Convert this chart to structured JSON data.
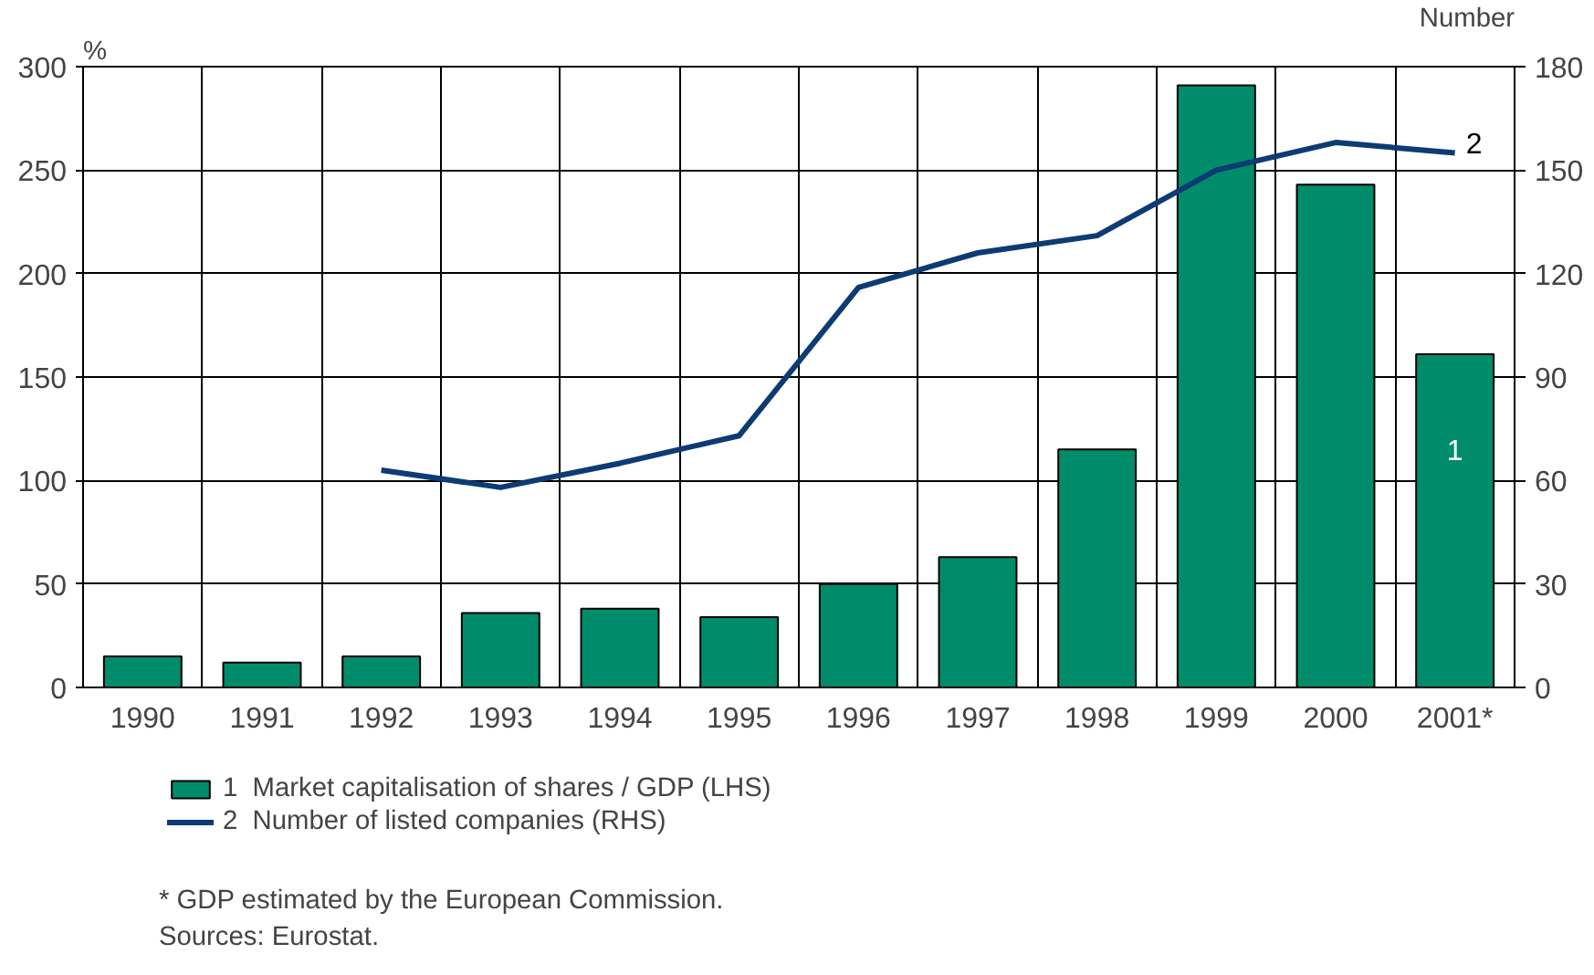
{
  "chart_data": {
    "type": "bar",
    "ylabel": "%",
    "y2label": "Number",
    "categories": [
      "1990",
      "1991",
      "1992",
      "1993",
      "1994",
      "1995",
      "1996",
      "1997",
      "1998",
      "1999",
      "2000",
      "2001*"
    ],
    "series": [
      {
        "name": "1  Market capitalisation of shares / GDP (LHS)",
        "color": "#008c6a",
        "values": [
          15,
          12,
          15,
          36,
          38,
          34,
          50,
          63,
          115,
          291,
          243,
          161
        ]
      },
      {
        "name": "2  Number of listed companies (RHS)",
        "type": "line",
        "axis": "y2",
        "color": "#0d3b73",
        "values": [
          null,
          null,
          63,
          58,
          65,
          73,
          116,
          126,
          131,
          150,
          158,
          155
        ]
      }
    ],
    "ylim": [
      0,
      300
    ],
    "yticks": [
      0,
      50,
      100,
      150,
      200,
      250,
      300
    ],
    "y2lim": [
      0,
      180
    ],
    "y2ticks": [
      0,
      30,
      60,
      90,
      120,
      150,
      180
    ],
    "grid": true,
    "legend": "bottom",
    "line_style": "solid",
    "marker": "none",
    "annotations": [
      {
        "text": "1",
        "x": "2001*",
        "y": 161
      },
      {
        "text": "2",
        "x": "2001*",
        "y": 258
      },
      "* GDP estimated by the European Commission.",
      "Sources: Eurostat."
    ]
  }
}
